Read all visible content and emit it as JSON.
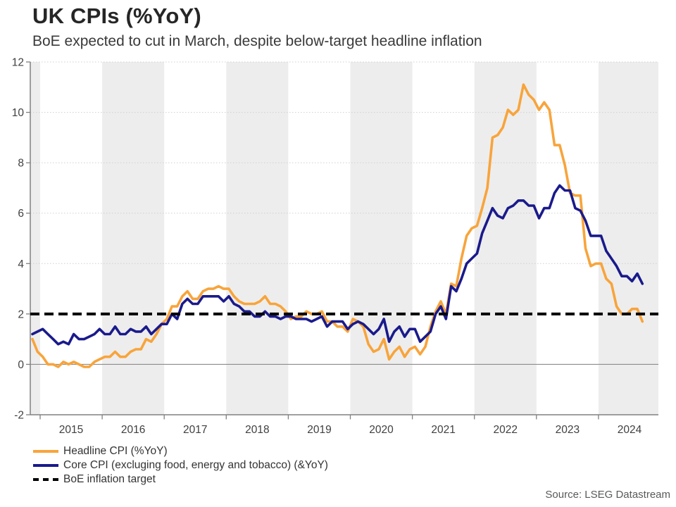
{
  "header": {
    "title": "UK CPIs (%YoY)",
    "subtitle": "BoE expected to cut in March, despite below-target headline inflation"
  },
  "source": "Source: LSEG Datastream",
  "legend": {
    "items": [
      {
        "label": "Headline CPI (%YoY)",
        "color": "#F8A43B",
        "style": "solid"
      },
      {
        "label": "Core CPI (excluging food, energy and tobacco) (&YoY)",
        "color": "#1A1A8C",
        "style": "solid"
      },
      {
        "label": "BoE inflation target",
        "color": "#000000",
        "style": "dashed"
      }
    ]
  },
  "colors": {
    "band": "#EDEDED",
    "axis": "#808080",
    "grid": "#CFCFCF",
    "zero_line": "#8C8C8C",
    "tick_text": "#404040",
    "headline": "#F8A43B",
    "core": "#1A1A8C",
    "target": "#000000"
  },
  "chart_data": {
    "type": "line",
    "title": "UK CPIs (%YoY)",
    "subtitle": "BoE expected to cut in March, despite below-target headline inflation",
    "frequency": "monthly",
    "x_start": "2014-11",
    "x_end": "2024-09",
    "x_tick_years": [
      2015,
      2016,
      2017,
      2018,
      2019,
      2020,
      2021,
      2022,
      2023,
      2024
    ],
    "shaded_band_years": [
      2014,
      2016,
      2018,
      2020,
      2022,
      2024
    ],
    "ylim": [
      -2,
      12
    ],
    "y_ticks": [
      -2,
      0,
      2,
      4,
      6,
      8,
      10,
      12
    ],
    "grid": "dotted horizontal, shaded alternate-year vertical bands",
    "legend_position": "bottom-left",
    "target_line": {
      "name": "BoE inflation target",
      "value": 2,
      "color": "#000000",
      "style": "dashed"
    },
    "series": [
      {
        "name": "Headline CPI (%YoY)",
        "color": "#F8A43B",
        "values": [
          1.0,
          0.5,
          0.3,
          0.0,
          0.0,
          -0.1,
          0.1,
          0.0,
          0.1,
          0.0,
          -0.1,
          -0.1,
          0.1,
          0.2,
          0.3,
          0.3,
          0.5,
          0.3,
          0.3,
          0.5,
          0.6,
          0.6,
          1.0,
          0.9,
          1.2,
          1.6,
          1.8,
          2.3,
          2.3,
          2.7,
          2.9,
          2.6,
          2.6,
          2.9,
          3.0,
          3.0,
          3.1,
          3.0,
          3.0,
          2.7,
          2.5,
          2.4,
          2.4,
          2.4,
          2.5,
          2.7,
          2.4,
          2.4,
          2.3,
          2.1,
          1.8,
          1.9,
          1.9,
          2.1,
          2.0,
          2.0,
          2.1,
          1.7,
          1.7,
          1.5,
          1.5,
          1.3,
          1.8,
          1.7,
          1.5,
          0.8,
          0.5,
          0.6,
          1.0,
          0.2,
          0.5,
          0.7,
          0.3,
          0.6,
          0.7,
          0.4,
          0.7,
          1.5,
          2.1,
          2.5,
          2.0,
          3.2,
          3.1,
          4.2,
          5.1,
          5.4,
          5.5,
          6.2,
          7.0,
          9.0,
          9.1,
          9.4,
          10.1,
          9.9,
          10.1,
          11.1,
          10.7,
          10.5,
          10.1,
          10.4,
          10.1,
          8.7,
          8.7,
          7.9,
          6.8,
          6.7,
          6.7,
          4.6,
          3.9,
          4.0,
          4.0,
          3.4,
          3.2,
          2.3,
          2.0,
          2.0,
          2.2,
          2.2,
          1.7
        ]
      },
      {
        "name": "Core CPI (excluging food, energy and tobacco) (&YoY)",
        "color": "#1A1A8C",
        "values": [
          1.2,
          1.3,
          1.4,
          1.2,
          1.0,
          0.8,
          0.9,
          0.8,
          1.2,
          1.0,
          1.0,
          1.1,
          1.2,
          1.4,
          1.2,
          1.2,
          1.5,
          1.2,
          1.2,
          1.4,
          1.3,
          1.3,
          1.5,
          1.2,
          1.4,
          1.6,
          1.6,
          2.0,
          1.8,
          2.4,
          2.6,
          2.4,
          2.4,
          2.7,
          2.7,
          2.7,
          2.7,
          2.5,
          2.7,
          2.4,
          2.3,
          2.1,
          2.1,
          1.9,
          1.9,
          2.1,
          1.9,
          1.9,
          1.8,
          1.9,
          1.9,
          1.8,
          1.8,
          1.8,
          1.7,
          1.8,
          1.9,
          1.5,
          1.7,
          1.7,
          1.7,
          1.4,
          1.6,
          1.7,
          1.6,
          1.4,
          1.2,
          1.4,
          1.8,
          0.9,
          1.3,
          1.5,
          1.1,
          1.4,
          1.4,
          0.9,
          1.1,
          1.3,
          2.0,
          2.3,
          1.8,
          3.1,
          2.9,
          3.4,
          4.0,
          4.2,
          4.4,
          5.2,
          5.7,
          6.2,
          5.9,
          5.8,
          6.2,
          6.3,
          6.5,
          6.5,
          6.3,
          6.3,
          5.8,
          6.2,
          6.2,
          6.8,
          7.1,
          6.9,
          6.9,
          6.2,
          6.1,
          5.7,
          5.1,
          5.1,
          5.1,
          4.5,
          4.2,
          3.9,
          3.5,
          3.5,
          3.3,
          3.6,
          3.2
        ]
      }
    ]
  }
}
